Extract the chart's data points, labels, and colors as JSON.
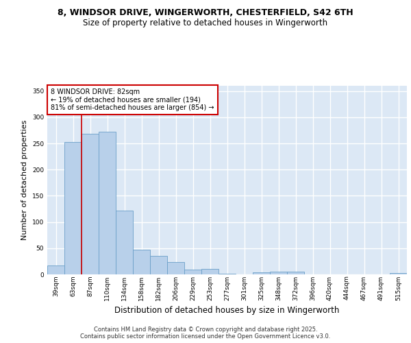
{
  "title_line1": "8, WINDSOR DRIVE, WINGERWORTH, CHESTERFIELD, S42 6TH",
  "title_line2": "Size of property relative to detached houses in Wingerworth",
  "xlabel": "Distribution of detached houses by size in Wingerworth",
  "ylabel": "Number of detached properties",
  "categories": [
    "39sqm",
    "63sqm",
    "87sqm",
    "110sqm",
    "134sqm",
    "158sqm",
    "182sqm",
    "206sqm",
    "229sqm",
    "253sqm",
    "277sqm",
    "301sqm",
    "325sqm",
    "348sqm",
    "372sqm",
    "396sqm",
    "420sqm",
    "444sqm",
    "467sqm",
    "491sqm",
    "515sqm"
  ],
  "values": [
    17,
    253,
    269,
    272,
    122,
    47,
    36,
    24,
    9,
    10,
    1,
    0,
    4,
    5,
    5,
    0,
    0,
    0,
    0,
    0,
    2
  ],
  "bar_color": "#b8d0ea",
  "bar_edge_color": "#6a9fc8",
  "annotation_text": "8 WINDSOR DRIVE: 82sqm\n← 19% of detached houses are smaller (194)\n81% of semi-detached houses are larger (854) →",
  "annotation_box_color": "#ffffff",
  "annotation_box_edge": "#cc0000",
  "vline_color": "#cc0000",
  "vline_x_index": 2,
  "ylim": [
    0,
    360
  ],
  "yticks": [
    0,
    50,
    100,
    150,
    200,
    250,
    300,
    350
  ],
  "bg_color": "#dce8f5",
  "grid_color": "#ffffff",
  "footer_text": "Contains HM Land Registry data © Crown copyright and database right 2025.\nContains public sector information licensed under the Open Government Licence v3.0.",
  "title_fontsize": 9,
  "subtitle_fontsize": 8.5,
  "ylabel_fontsize": 8,
  "xlabel_fontsize": 8.5,
  "tick_fontsize": 6.5,
  "annotation_fontsize": 7,
  "footer_fontsize": 6
}
